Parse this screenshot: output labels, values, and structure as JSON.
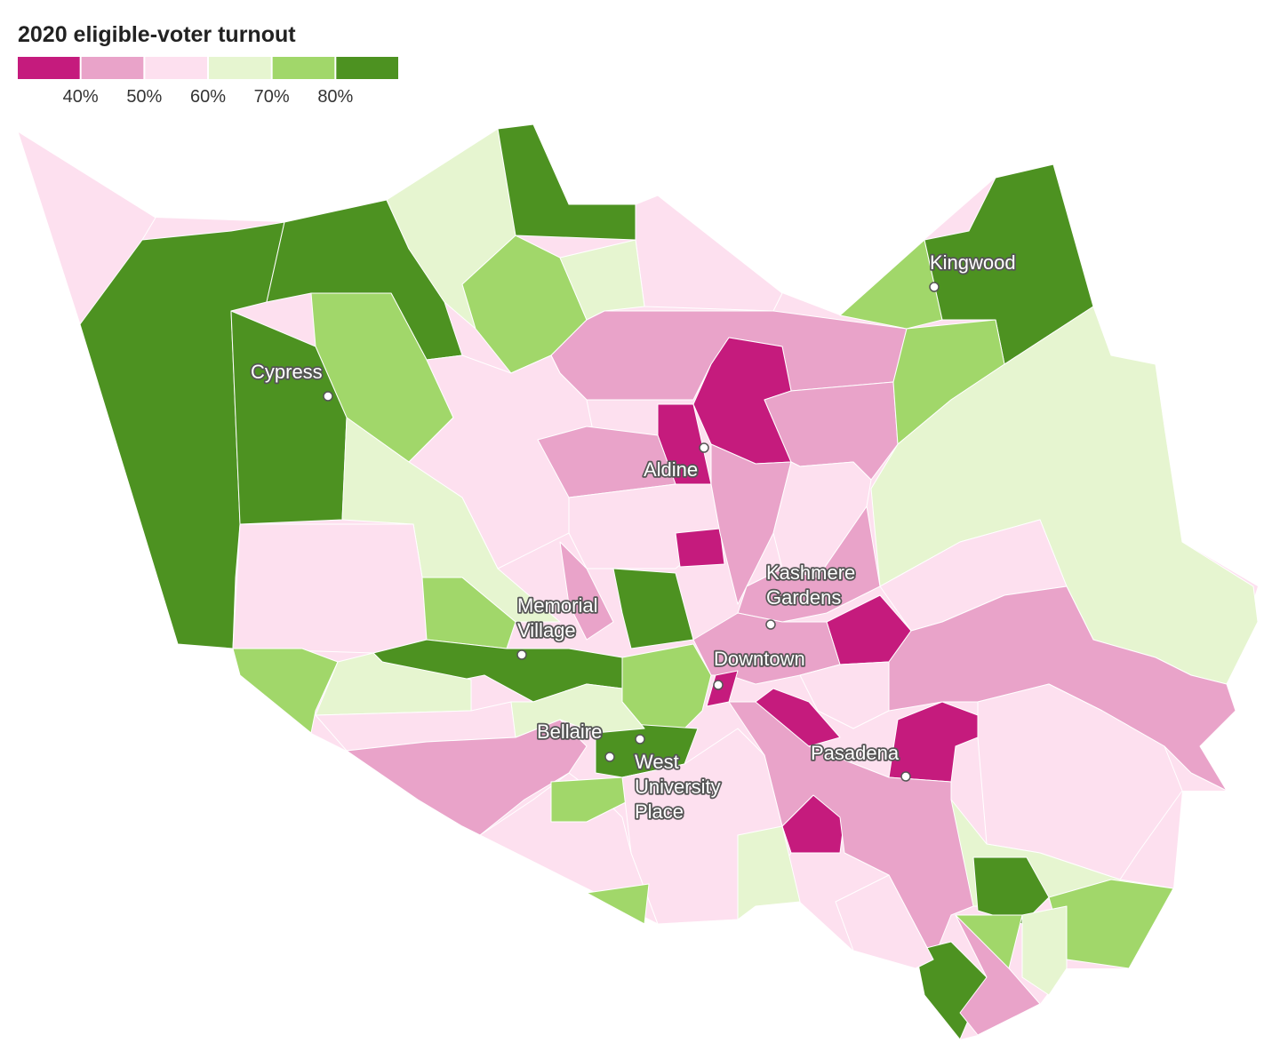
{
  "chart_data": {
    "type": "choropleth",
    "title": "2020 eligible-voter turnout",
    "legend": {
      "colors": [
        "#c51b7d",
        "#e9a3c9",
        "#fde0ef",
        "#e6f5d0",
        "#a1d76a",
        "#4d9221"
      ],
      "ticks": [
        {
          "value": 40,
          "label": "40%"
        },
        {
          "value": 50,
          "label": "50%"
        },
        {
          "value": 60,
          "label": "60%"
        },
        {
          "value": 70,
          "label": "70%"
        },
        {
          "value": 80,
          "label": "80%"
        }
      ]
    },
    "values": [
      55,
      85,
      85,
      75,
      85,
      65,
      85,
      75,
      55,
      65,
      45,
      35,
      35,
      45,
      75,
      85,
      75,
      65,
      55,
      65,
      55,
      45,
      55,
      35,
      45,
      55,
      45,
      35,
      55,
      45,
      85,
      75,
      85,
      75,
      45,
      35,
      55,
      45,
      35,
      35,
      35,
      45,
      55,
      65,
      85,
      75,
      75,
      65,
      85,
      45,
      55,
      75,
      65,
      55,
      45,
      55,
      85,
      75,
      55,
      75,
      65,
      65
    ],
    "places": [
      [
        "Kingwood"
      ],
      [
        "Cypress"
      ],
      [
        "Aldine"
      ],
      [
        "Kashmere",
        "Gardens"
      ],
      [
        "Memorial",
        "Village"
      ],
      [
        "Downtown"
      ],
      [
        "Bellaire"
      ],
      [
        "West",
        "University",
        "Place"
      ],
      [
        "Pasadena"
      ]
    ]
  }
}
